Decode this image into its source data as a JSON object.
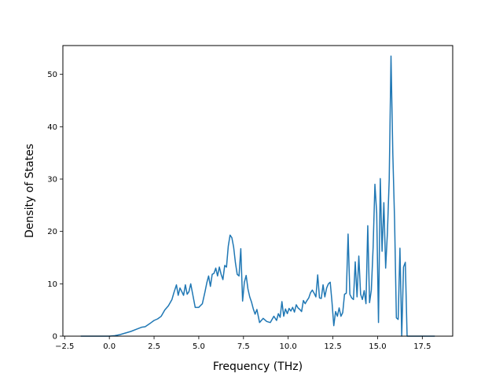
{
  "chart_data": {
    "type": "line",
    "xlabel": "Frequency (THz)",
    "ylabel": "Density of States",
    "xlim": [
      -2.6,
      19.2
    ],
    "ylim": [
      0,
      55.5
    ],
    "xticks": [
      -2.5,
      0.0,
      2.5,
      5.0,
      7.5,
      10.0,
      12.5,
      15.0,
      17.5
    ],
    "xtick_labels": [
      "−2.5",
      "0.0",
      "2.5",
      "5.0",
      "7.5",
      "10.0",
      "12.5",
      "15.0",
      "17.5"
    ],
    "yticks": [
      0,
      10,
      20,
      30,
      40,
      50
    ],
    "ytick_labels": [
      "0",
      "10",
      "20",
      "30",
      "40",
      "50"
    ],
    "grid": false,
    "series": [
      {
        "color": "#1f77b4",
        "x": [
          -1.6,
          -1.0,
          -0.5,
          0.0,
          0.3,
          0.6,
          0.9,
          1.2,
          1.5,
          1.8,
          2.0,
          2.3,
          2.5,
          2.7,
          2.9,
          3.1,
          3.3,
          3.5,
          3.6,
          3.75,
          3.85,
          3.95,
          4.05,
          4.15,
          4.25,
          4.35,
          4.45,
          4.55,
          4.65,
          4.8,
          5.0,
          5.2,
          5.35,
          5.45,
          5.55,
          5.65,
          5.75,
          5.85,
          5.95,
          6.05,
          6.15,
          6.25,
          6.35,
          6.45,
          6.55,
          6.65,
          6.75,
          6.85,
          6.95,
          7.05,
          7.15,
          7.25,
          7.35,
          7.45,
          7.55,
          7.65,
          7.75,
          7.85,
          7.95,
          8.05,
          8.15,
          8.25,
          8.4,
          8.6,
          8.8,
          9.0,
          9.2,
          9.35,
          9.45,
          9.55,
          9.65,
          9.75,
          9.85,
          9.95,
          10.05,
          10.15,
          10.25,
          10.35,
          10.45,
          10.55,
          10.65,
          10.75,
          10.85,
          10.95,
          11.05,
          11.15,
          11.25,
          11.35,
          11.45,
          11.55,
          11.65,
          11.75,
          11.85,
          11.95,
          12.05,
          12.15,
          12.25,
          12.35,
          12.45,
          12.55,
          12.65,
          12.75,
          12.85,
          12.95,
          13.05,
          13.15,
          13.25,
          13.35,
          13.45,
          13.55,
          13.65,
          13.75,
          13.85,
          13.95,
          14.05,
          14.15,
          14.25,
          14.35,
          14.45,
          14.55,
          14.65,
          14.75,
          14.85,
          14.95,
          15.05,
          15.15,
          15.25,
          15.35,
          15.45,
          15.55,
          15.65,
          15.75,
          15.85,
          15.95,
          16.05,
          16.15,
          16.25,
          16.35,
          16.45,
          16.55,
          16.65,
          16.75,
          16.85,
          17.0,
          17.5,
          18.0,
          18.2
        ],
        "y": [
          0,
          0,
          0,
          0,
          0.1,
          0.3,
          0.6,
          0.9,
          1.3,
          1.7,
          1.8,
          2.5,
          3.0,
          3.3,
          3.8,
          5.0,
          5.8,
          7.0,
          8.2,
          9.8,
          7.8,
          9.2,
          8.5,
          7.8,
          9.8,
          8.0,
          8.5,
          10.0,
          8.2,
          5.5,
          5.5,
          6.2,
          8.5,
          10.2,
          11.5,
          9.5,
          11.8,
          12.0,
          13.0,
          11.5,
          13.2,
          11.8,
          10.8,
          13.5,
          13.2,
          17.2,
          19.3,
          18.8,
          17.0,
          14.0,
          11.8,
          11.5,
          16.7,
          6.7,
          10.3,
          11.6,
          9.0,
          7.5,
          6.5,
          5.2,
          4.2,
          5.1,
          2.6,
          3.4,
          2.8,
          2.6,
          3.8,
          3.0,
          4.3,
          3.6,
          6.6,
          3.8,
          5.2,
          4.3,
          5.3,
          4.8,
          5.5,
          4.6,
          6.0,
          5.4,
          5.1,
          4.7,
          6.8,
          6.2,
          6.8,
          7.3,
          8.3,
          8.8,
          8.2,
          7.5,
          11.7,
          7.3,
          7.2,
          9.8,
          7.5,
          9.2,
          10.0,
          10.3,
          6.5,
          2.0,
          4.7,
          3.8,
          5.4,
          3.8,
          4.5,
          8.0,
          8.2,
          19.5,
          8.0,
          7.3,
          7.0,
          14.2,
          7.5,
          15.3,
          8.0,
          7.0,
          8.7,
          6.2,
          21.1,
          6.4,
          8.8,
          17.0,
          29.0,
          23.5,
          2.6,
          30.1,
          16.2,
          25.5,
          13.0,
          19.8,
          30.0,
          53.5,
          35.0,
          22.0,
          3.5,
          3.2,
          16.8,
          0.0,
          13.2,
          14.1,
          0.0,
          0.0,
          0.0,
          0.0,
          0.0,
          0.0,
          0.0
        ]
      }
    ]
  }
}
